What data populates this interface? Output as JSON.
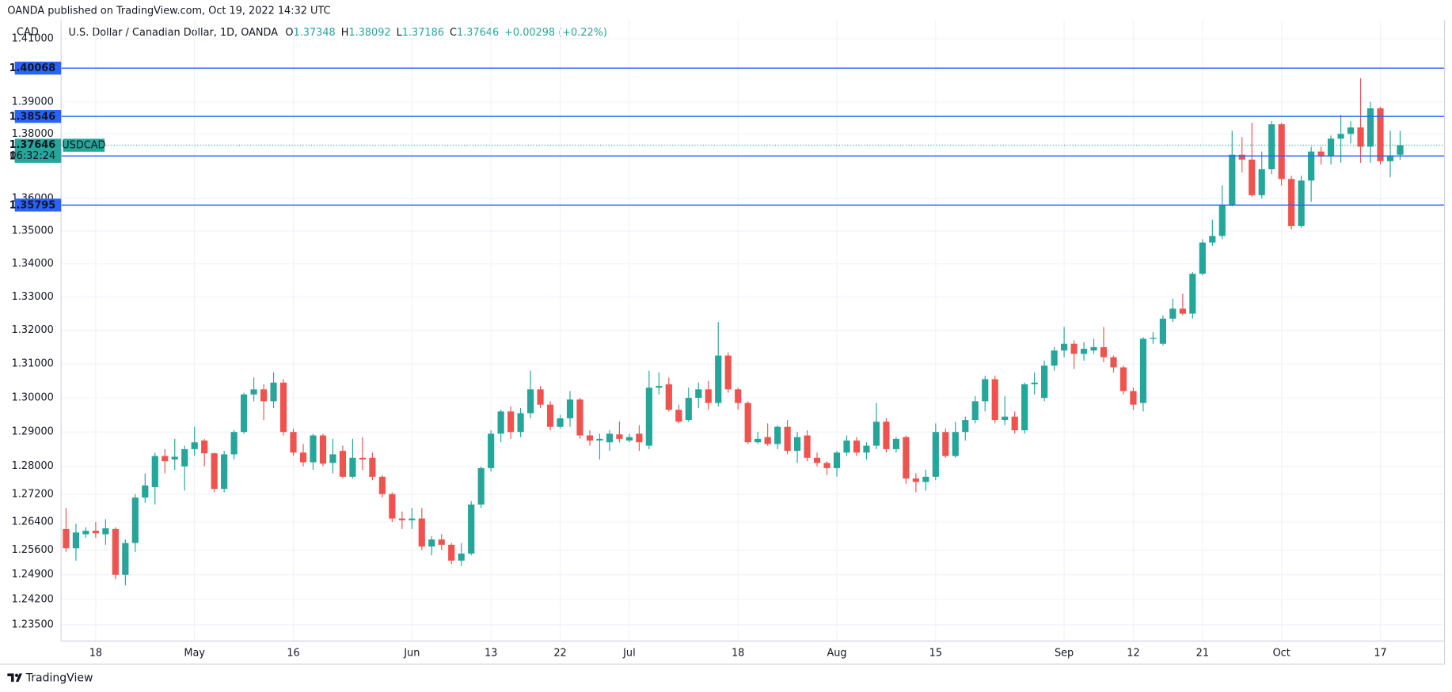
{
  "chart_data": {
    "type": "candlestick",
    "publisher": "OANDA published on TradingView.com, Oct 19, 2022 14:32 UTC",
    "currency": "CAD",
    "legend": {
      "name": "U.S. Dollar / Canadian Dollar, 1D, OANDA",
      "ohlc": [
        {
          "label": "O",
          "value": "1.37348"
        },
        {
          "label": "H",
          "value": "1.38092"
        },
        {
          "label": "L",
          "value": "1.37186"
        },
        {
          "label": "C",
          "value": "1.37646"
        }
      ],
      "change": "+0.00298 (+0.22%)"
    },
    "brand": "TradingView",
    "symbol": "USDCAD",
    "countdown": "06:32:24",
    "last_price": 1.37646,
    "levels": [
      1.40068,
      1.38546,
      1.37312,
      1.35795
    ],
    "level_color": "#2962ff",
    "up_color": "#26a69a",
    "down_color": "#ef5350",
    "log_scale": true,
    "grid": true,
    "ylim": [
      1.2304,
      1.415
    ],
    "yticks": [
      {
        "value": 1.235,
        "label": "1.23500"
      },
      {
        "value": 1.242,
        "label": "1.24200"
      },
      {
        "value": 1.249,
        "label": "1.24900"
      },
      {
        "value": 1.256,
        "label": "1.25600"
      },
      {
        "value": 1.264,
        "label": "1.26400"
      },
      {
        "value": 1.272,
        "label": "1.27200"
      },
      {
        "value": 1.28,
        "label": "1.28000"
      },
      {
        "value": 1.29,
        "label": "1.29000"
      },
      {
        "value": 1.3,
        "label": "1.30000"
      },
      {
        "value": 1.31,
        "label": "1.31000"
      },
      {
        "value": 1.32,
        "label": "1.32000"
      },
      {
        "value": 1.33,
        "label": "1.33000"
      },
      {
        "value": 1.34,
        "label": "1.34000"
      },
      {
        "value": 1.35,
        "label": "1.35000"
      },
      {
        "value": 1.36,
        "label": "1.36000"
      },
      {
        "value": 1.38,
        "label": "1.38000"
      },
      {
        "value": 1.39,
        "label": "1.39000"
      },
      {
        "value": 1.41,
        "label": "1.41000"
      }
    ],
    "categories": [
      null,
      null,
      null,
      "18",
      null,
      null,
      null,
      null,
      null,
      null,
      null,
      null,
      null,
      "May",
      null,
      null,
      null,
      null,
      null,
      null,
      null,
      null,
      null,
      "16",
      null,
      null,
      null,
      null,
      null,
      null,
      null,
      null,
      null,
      null,
      null,
      "Jun",
      null,
      null,
      null,
      null,
      null,
      null,
      null,
      "13",
      null,
      null,
      null,
      null,
      null,
      null,
      "22",
      null,
      null,
      null,
      null,
      null,
      null,
      "Jul",
      null,
      null,
      null,
      null,
      null,
      null,
      null,
      null,
      null,
      null,
      "18",
      null,
      null,
      null,
      null,
      null,
      null,
      null,
      null,
      null,
      "Aug",
      null,
      null,
      null,
      null,
      null,
      null,
      null,
      null,
      null,
      "15",
      null,
      null,
      null,
      null,
      null,
      null,
      null,
      null,
      null,
      null,
      null,
      null,
      "Sep",
      null,
      null,
      null,
      null,
      null,
      null,
      "12",
      null,
      null,
      null,
      null,
      null,
      null,
      "21",
      null,
      null,
      null,
      null,
      null,
      null,
      null,
      "Oct",
      null,
      null,
      null,
      null,
      null,
      null,
      null,
      null,
      null,
      "17",
      null,
      null
    ],
    "open": [
      1.262,
      1.2565,
      1.2605,
      1.2615,
      1.2605,
      1.262,
      1.249,
      1.258,
      1.271,
      1.274,
      1.283,
      1.282,
      1.28,
      1.285,
      1.2875,
      1.2838,
      1.2735,
      1.2835,
      1.29,
      1.301,
      1.3025,
      1.299,
      1.3045,
      1.29,
      1.284,
      1.2812,
      1.289,
      1.281,
      1.2845,
      1.277,
      1.2825,
      1.2825,
      1.277,
      1.272,
      1.265,
      1.2645,
      1.265,
      1.257,
      1.259,
      1.2575,
      1.253,
      1.255,
      1.269,
      1.2795,
      1.2895,
      1.296,
      1.29,
      1.2955,
      1.3025,
      1.298,
      1.2915,
      1.294,
      1.2995,
      1.289,
      1.2875,
      1.287,
      1.2893,
      1.2875,
      1.2895,
      1.286,
      1.303,
      1.304,
      1.2965,
      1.2935,
      1.3,
      1.3025,
      1.2985,
      1.3125,
      1.3025,
      1.2985,
      1.287,
      1.2885,
      1.2865,
      1.2915,
      1.2845,
      1.289,
      1.2825,
      1.281,
      1.2795,
      1.284,
      1.2875,
      1.284,
      1.286,
      1.293,
      1.285,
      1.2885,
      1.2765,
      1.2755,
      1.277,
      1.29,
      1.283,
      1.29,
      1.2935,
      1.299,
      1.3055,
      1.2935,
      1.2945,
      1.2905,
      1.304,
      1.3,
      1.3095,
      1.314,
      1.316,
      1.313,
      1.314,
      1.315,
      1.312,
      1.309,
      1.302,
      1.2985,
      1.3175,
      1.316,
      1.3235,
      1.3265,
      1.325,
      1.337,
      1.3465,
      1.3485,
      1.358,
      1.3735,
      1.372,
      1.361,
      1.369,
      1.383,
      1.366,
      1.3515,
      1.3655,
      1.3745,
      1.373,
      1.3785,
      1.38,
      1.382,
      1.376,
      1.388,
      1.3715,
      1.37348
    ],
    "high": [
      1.268,
      1.2635,
      1.2625,
      1.264,
      1.2648,
      1.2625,
      1.259,
      1.272,
      1.278,
      1.284,
      1.285,
      1.288,
      1.286,
      1.2915,
      1.288,
      1.284,
      1.2845,
      1.2905,
      1.3015,
      1.306,
      1.304,
      1.3075,
      1.3055,
      1.291,
      1.2865,
      1.2895,
      1.2895,
      1.288,
      1.286,
      1.288,
      1.2885,
      1.284,
      1.2775,
      1.2725,
      1.267,
      1.268,
      1.268,
      1.26,
      1.2605,
      1.258,
      1.258,
      1.27,
      1.28,
      1.2905,
      1.2965,
      1.2975,
      1.297,
      1.308,
      1.3035,
      1.299,
      1.295,
      1.302,
      1.3,
      1.2905,
      1.2895,
      1.2905,
      1.293,
      1.2895,
      1.292,
      1.308,
      1.3075,
      1.306,
      1.298,
      1.303,
      1.3045,
      1.305,
      1.3225,
      1.3135,
      1.303,
      1.299,
      1.29,
      1.2925,
      1.292,
      1.2935,
      1.29,
      1.2905,
      1.284,
      1.2815,
      1.2845,
      1.289,
      1.2885,
      1.287,
      1.2985,
      1.294,
      1.2885,
      1.289,
      1.278,
      1.279,
      1.2925,
      1.291,
      1.293,
      1.2945,
      1.3005,
      1.3065,
      1.3065,
      1.3005,
      1.296,
      1.3045,
      1.3075,
      1.311,
      1.315,
      1.321,
      1.317,
      1.3165,
      1.3175,
      1.321,
      1.3125,
      1.3095,
      1.303,
      1.318,
      1.3195,
      1.3245,
      1.3295,
      1.331,
      1.3375,
      1.3475,
      1.3535,
      1.364,
      1.381,
      1.379,
      1.3835,
      1.3745,
      1.384,
      1.3835,
      1.367,
      1.367,
      1.376,
      1.376,
      1.3795,
      1.386,
      1.384,
      1.3975,
      1.39,
      1.3885,
      1.381,
      1.38092
    ],
    "low": [
      1.2555,
      1.253,
      1.2595,
      1.2595,
      1.2575,
      1.2478,
      1.246,
      1.2555,
      1.2695,
      1.269,
      1.278,
      1.279,
      1.273,
      1.283,
      1.28,
      1.2725,
      1.2725,
      1.282,
      1.2895,
      1.299,
      1.2935,
      1.297,
      1.289,
      1.283,
      1.28,
      1.279,
      1.28,
      1.278,
      1.2765,
      1.2765,
      1.279,
      1.276,
      1.271,
      1.264,
      1.262,
      1.262,
      1.256,
      1.2545,
      1.256,
      1.252,
      1.2515,
      1.2545,
      1.268,
      1.2785,
      1.287,
      1.288,
      1.2885,
      1.294,
      1.297,
      1.2905,
      1.291,
      1.2915,
      1.288,
      1.286,
      1.282,
      1.2845,
      1.287,
      1.287,
      1.2845,
      1.285,
      1.301,
      1.296,
      1.2925,
      1.293,
      1.297,
      1.2965,
      1.2975,
      1.3015,
      1.2965,
      1.2865,
      1.2865,
      1.286,
      1.285,
      1.2835,
      1.281,
      1.2815,
      1.28,
      1.2775,
      1.277,
      1.283,
      1.283,
      1.282,
      1.285,
      1.284,
      1.284,
      1.275,
      1.2725,
      1.273,
      1.276,
      1.2825,
      1.2825,
      1.2875,
      1.2925,
      1.296,
      1.2925,
      1.292,
      1.2895,
      1.2895,
      1.301,
      1.299,
      1.308,
      1.312,
      1.3085,
      1.311,
      1.313,
      1.3105,
      1.3075,
      1.301,
      1.2965,
      1.296,
      1.316,
      1.3155,
      1.3225,
      1.3245,
      1.3235,
      1.3365,
      1.3455,
      1.3475,
      1.3575,
      1.368,
      1.3605,
      1.36,
      1.3675,
      1.364,
      1.3505,
      1.351,
      1.359,
      1.3705,
      1.3705,
      1.371,
      1.377,
      1.371,
      1.371,
      1.3705,
      1.3665,
      1.37186
    ],
    "close": [
      1.2565,
      1.261,
      1.2615,
      1.2608,
      1.2622,
      1.249,
      1.258,
      1.271,
      1.2745,
      1.283,
      1.2815,
      1.2828,
      1.285,
      1.287,
      1.2838,
      1.2735,
      1.2835,
      1.29,
      1.301,
      1.3025,
      1.299,
      1.3045,
      1.29,
      1.284,
      1.2812,
      1.289,
      1.2808,
      1.2835,
      1.277,
      1.2825,
      1.282,
      1.277,
      1.272,
      1.265,
      1.2645,
      1.265,
      1.257,
      1.259,
      1.2575,
      1.253,
      1.255,
      1.269,
      1.2795,
      1.2895,
      1.296,
      1.29,
      1.2955,
      1.3025,
      1.298,
      1.2915,
      1.294,
      1.2995,
      1.289,
      1.2875,
      1.288,
      1.2895,
      1.288,
      1.2885,
      1.287,
      1.303,
      1.3035,
      1.2965,
      1.293,
      1.3,
      1.3025,
      1.2985,
      1.3125,
      1.3025,
      1.2985,
      1.287,
      1.288,
      1.2865,
      1.2915,
      1.2845,
      1.2885,
      1.2825,
      1.281,
      1.2795,
      1.284,
      1.2875,
      1.284,
      1.286,
      1.293,
      1.285,
      1.288,
      1.2765,
      1.2755,
      1.277,
      1.29,
      1.283,
      1.29,
      1.2935,
      1.299,
      1.3055,
      1.2935,
      1.2945,
      1.2905,
      1.304,
      1.3045,
      1.3095,
      1.314,
      1.316,
      1.313,
      1.3145,
      1.315,
      1.312,
      1.309,
      1.302,
      1.298,
      1.3175,
      1.3178,
      1.3235,
      1.3265,
      1.325,
      1.337,
      1.3465,
      1.3485,
      1.358,
      1.3735,
      1.372,
      1.361,
      1.369,
      1.383,
      1.366,
      1.3515,
      1.3655,
      1.3745,
      1.373,
      1.3785,
      1.38,
      1.382,
      1.376,
      1.388,
      1.3715,
      1.3731,
      1.37646
    ]
  }
}
